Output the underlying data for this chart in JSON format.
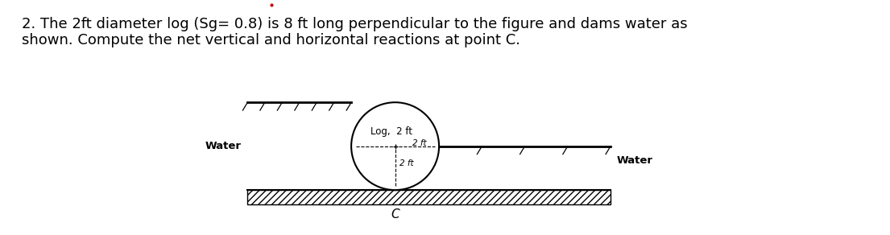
{
  "title_line1": "2. The 2ft diameter log (Sg= 0.8) is 8 ft long perpendicular to the figure and dams water as",
  "title_line2": "shown. Compute the net vertical and horizontal reactions at point C.",
  "background_color": "#ffffff",
  "text_color": "#000000",
  "fig_width": 11.05,
  "fig_height": 2.92,
  "log_label": "Log,  2 ft",
  "water_left_label": "Water",
  "water_right_label": "Water",
  "point_c_label": "C",
  "font_size_title": 13.0
}
